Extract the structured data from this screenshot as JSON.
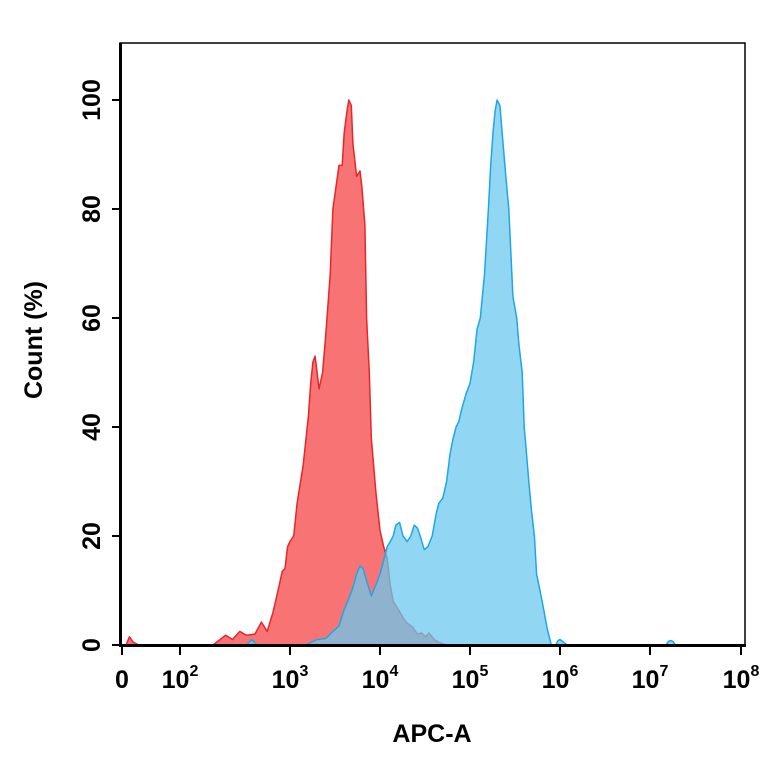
{
  "chart_data": {
    "type": "area",
    "title": "",
    "xlabel": "APC-A",
    "ylabel": "Count  (%)",
    "x_scale": "biexponential (log above 10^2)",
    "xlim": [
      0,
      100000000
    ],
    "ylim": [
      0,
      105
    ],
    "grid": false,
    "legend": "none",
    "x_ticks": [
      {
        "value": 0,
        "base": "0",
        "exp": ""
      },
      {
        "value": 100,
        "base": "10",
        "exp": "2"
      },
      {
        "value": 1000,
        "base": "10",
        "exp": "3"
      },
      {
        "value": 10000,
        "base": "10",
        "exp": "4"
      },
      {
        "value": 100000,
        "base": "10",
        "exp": "5"
      },
      {
        "value": 1000000,
        "base": "10",
        "exp": "6"
      },
      {
        "value": 10000000,
        "base": "10",
        "exp": "7"
      },
      {
        "value": 100000000,
        "base": "10",
        "exp": "8"
      }
    ],
    "y_ticks": [
      "0",
      "20",
      "40",
      "60",
      "80",
      "100"
    ],
    "series": [
      {
        "color": "#f86c6c",
        "stroke": "#e8262a",
        "points": [
          [
            2,
            0
          ],
          [
            8,
            1.5
          ],
          [
            15,
            0.5
          ],
          [
            25,
            0
          ],
          [
            200,
            0
          ],
          [
            260,
            1.8
          ],
          [
            300,
            1.0
          ],
          [
            350,
            2.5
          ],
          [
            400,
            1.8
          ],
          [
            480,
            2.0
          ],
          [
            550,
            4.2
          ],
          [
            620,
            2.5
          ],
          [
            700,
            6.0
          ],
          [
            800,
            11
          ],
          [
            850,
            13.5
          ],
          [
            900,
            14
          ],
          [
            950,
            18
          ],
          [
            1000,
            19
          ],
          [
            1100,
            20
          ],
          [
            1200,
            26
          ],
          [
            1400,
            33
          ],
          [
            1600,
            42
          ],
          [
            1700,
            48
          ],
          [
            1800,
            52
          ],
          [
            1900,
            53
          ],
          [
            2000,
            50
          ],
          [
            2100,
            47
          ],
          [
            2300,
            50
          ],
          [
            2500,
            57
          ],
          [
            2800,
            68
          ],
          [
            3000,
            80
          ],
          [
            3300,
            85
          ],
          [
            3500,
            88
          ],
          [
            3800,
            88
          ],
          [
            4000,
            94
          ],
          [
            4300,
            98
          ],
          [
            4500,
            100
          ],
          [
            4800,
            99
          ],
          [
            5000,
            92
          ],
          [
            5500,
            86
          ],
          [
            6000,
            87
          ],
          [
            6300,
            84
          ],
          [
            6800,
            77
          ],
          [
            7100,
            60
          ],
          [
            7600,
            50
          ],
          [
            8000,
            38
          ],
          [
            9000,
            28
          ],
          [
            10000,
            21
          ],
          [
            11000,
            18
          ],
          [
            12000,
            16
          ],
          [
            13000,
            11
          ],
          [
            14000,
            8
          ],
          [
            16000,
            6.5
          ],
          [
            18000,
            5
          ],
          [
            20000,
            4
          ],
          [
            23000,
            3.3
          ],
          [
            26000,
            2.0
          ],
          [
            29000,
            2.2
          ],
          [
            32000,
            1.5
          ],
          [
            35000,
            2.2
          ],
          [
            40000,
            1.0
          ],
          [
            45000,
            0.5
          ],
          [
            55000,
            0
          ]
        ]
      },
      {
        "color": "#6cc8ee",
        "stroke": "#1fa7e3",
        "points": [
          [
            400,
            0
          ],
          [
            450,
            1.0
          ],
          [
            500,
            0
          ],
          [
            800,
            0
          ],
          [
            1500,
            0
          ],
          [
            2000,
            1.0
          ],
          [
            2500,
            1.2
          ],
          [
            3000,
            2.5
          ],
          [
            3500,
            3.5
          ],
          [
            4000,
            6.5
          ],
          [
            4500,
            8.5
          ],
          [
            5000,
            10.5
          ],
          [
            5500,
            13
          ],
          [
            6000,
            14.5
          ],
          [
            6500,
            14
          ],
          [
            7000,
            12
          ],
          [
            7500,
            10.5
          ],
          [
            8000,
            9
          ],
          [
            9000,
            11
          ],
          [
            10000,
            13
          ],
          [
            11000,
            15.5
          ],
          [
            12000,
            18
          ],
          [
            13000,
            19
          ],
          [
            14000,
            20
          ],
          [
            15000,
            22
          ],
          [
            16500,
            22.5
          ],
          [
            18000,
            20
          ],
          [
            20000,
            19
          ],
          [
            22000,
            20
          ],
          [
            24000,
            22
          ],
          [
            26000,
            21.5
          ],
          [
            28000,
            20
          ],
          [
            31000,
            17.5
          ],
          [
            34000,
            18
          ],
          [
            38000,
            20
          ],
          [
            42000,
            24
          ],
          [
            45000,
            26
          ],
          [
            50000,
            27
          ],
          [
            55000,
            30
          ],
          [
            60000,
            35
          ],
          [
            65000,
            38
          ],
          [
            70000,
            40
          ],
          [
            75000,
            41
          ],
          [
            80000,
            43
          ],
          [
            90000,
            46
          ],
          [
            100000,
            48
          ],
          [
            110000,
            52
          ],
          [
            120000,
            58
          ],
          [
            130000,
            60
          ],
          [
            145000,
            68
          ],
          [
            160000,
            80
          ],
          [
            170000,
            88
          ],
          [
            180000,
            94
          ],
          [
            190000,
            98
          ],
          [
            200000,
            100
          ],
          [
            215000,
            99
          ],
          [
            230000,
            93
          ],
          [
            250000,
            86
          ],
          [
            270000,
            80
          ],
          [
            300000,
            64
          ],
          [
            330000,
            60
          ],
          [
            350000,
            55
          ],
          [
            380000,
            50
          ],
          [
            400000,
            40
          ],
          [
            420000,
            36
          ],
          [
            450000,
            30
          ],
          [
            480000,
            25
          ],
          [
            520000,
            20
          ],
          [
            550000,
            13
          ],
          [
            600000,
            10
          ],
          [
            650000,
            7
          ],
          [
            720000,
            3
          ],
          [
            800000,
            0
          ],
          [
            900000,
            0
          ],
          [
            950000,
            0.8
          ],
          [
            1000000,
            1.0
          ],
          [
            1100000,
            0.5
          ],
          [
            1200000,
            0
          ],
          [
            15000000,
            0
          ],
          [
            16000000,
            0.7
          ],
          [
            17000000,
            0.8
          ],
          [
            18000000,
            0.6
          ],
          [
            19000000,
            0
          ]
        ]
      }
    ]
  }
}
